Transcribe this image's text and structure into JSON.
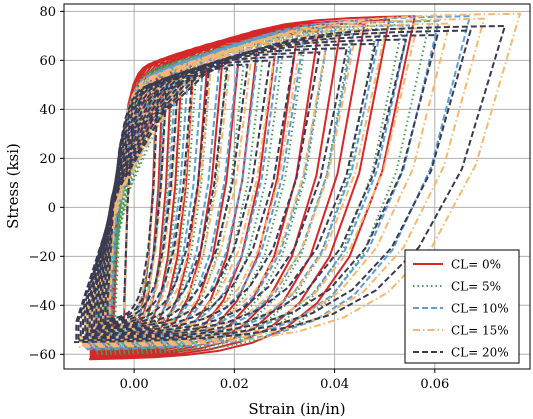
{
  "chart_data": {
    "type": "line",
    "title": "",
    "xlabel": "Strain (in/in)",
    "ylabel": "Stress (ksi)",
    "xlim": [
      -0.014,
      0.079
    ],
    "ylim": [
      -66,
      83
    ],
    "xticks": [
      0.0,
      0.02,
      0.04,
      0.06
    ],
    "xtick_labels": [
      "0.00",
      "0.02",
      "0.04",
      "0.06"
    ],
    "yticks": [
      -60,
      -40,
      -20,
      0,
      20,
      40,
      60,
      80
    ],
    "ytick_labels": [
      "−60",
      "−40",
      "−20",
      "0",
      "20",
      "40",
      "60",
      "80"
    ],
    "grid": true,
    "legend_position": "bottom-right",
    "description": "Cyclic stress-strain hysteresis loops for five corrosion levels",
    "series": [
      {
        "name": "CL= 0%",
        "color": "#d62728",
        "dash": "solid",
        "peak_strain": 0.056,
        "max_stress": 78,
        "min_stress": -62,
        "min_strain": -0.008,
        "yield": 58
      },
      {
        "name": "CL= 5%",
        "color": "#4a9a5a",
        "dash": "dotted",
        "peak_strain": 0.059,
        "max_stress": 76,
        "min_stress": -60,
        "min_strain": -0.007,
        "yield": 55
      },
      {
        "name": "CL= 10%",
        "color": "#5b9fd3",
        "dash": "dashed",
        "peak_strain": 0.067,
        "max_stress": 78,
        "min_stress": -58,
        "min_strain": -0.009,
        "yield": 53
      },
      {
        "name": "CL= 15%",
        "color": "#f5b86e",
        "dash": "dashdot",
        "peak_strain": 0.077,
        "max_stress": 79,
        "min_stress": -57,
        "min_strain": -0.01,
        "yield": 52
      },
      {
        "name": "CL= 20%",
        "color": "#3a3a52",
        "dash": "dashed",
        "peak_strain": 0.074,
        "max_stress": 74,
        "min_stress": -55,
        "min_strain": -0.011,
        "yield": 49
      }
    ]
  }
}
